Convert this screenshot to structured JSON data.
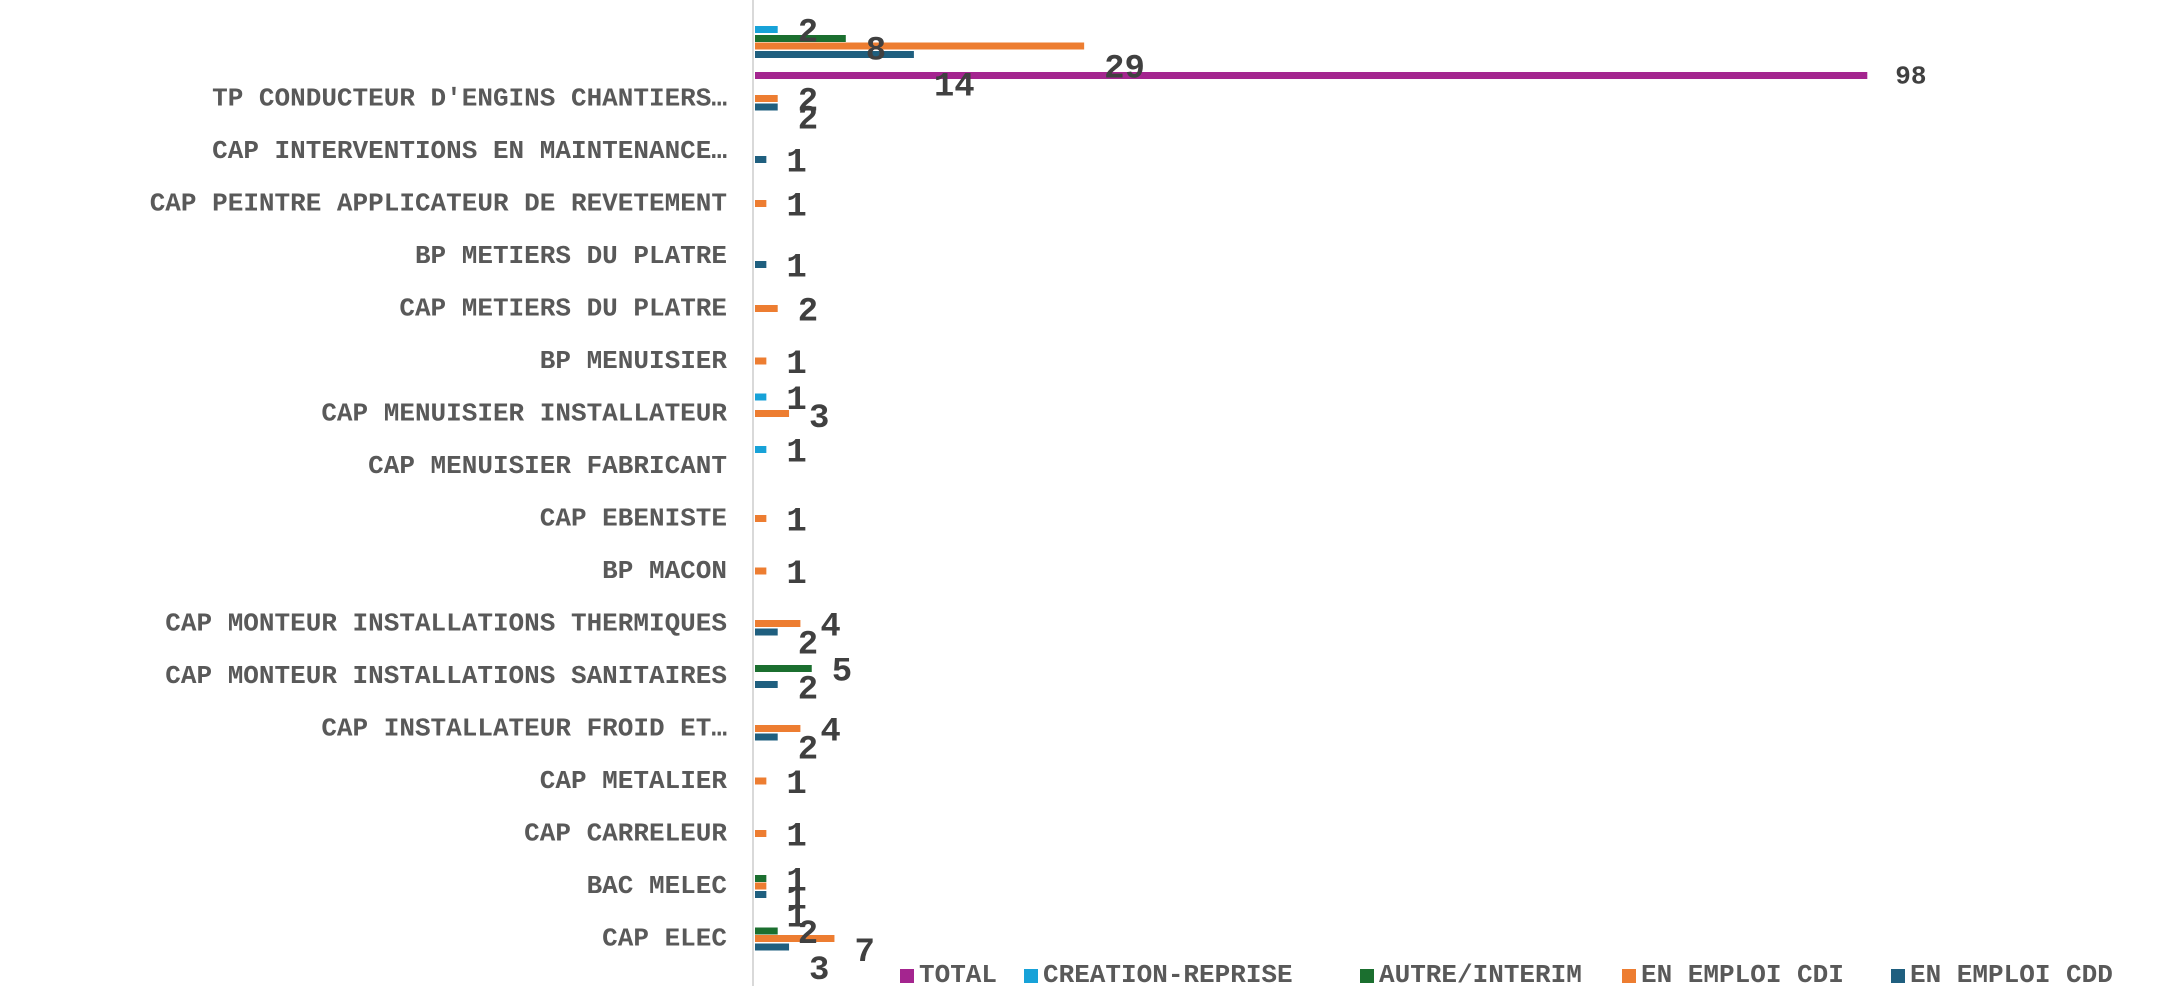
{
  "chart_data": {
    "type": "bar",
    "orientation": "horizontal",
    "grid": false,
    "legend_position": "bottom",
    "categories": [
      "",
      "TP CONDUCTEUR D'ENGINS CHANTIERS…",
      "CAP  INTERVENTIONS EN MAINTENANCE…",
      "CAP PEINTRE APPLICATEUR DE REVETEMENT",
      "BP METIERS DU PLATRE",
      "CAP METIERS DU PLATRE",
      "BP MENUISIER",
      "CAP MENUISIER INSTALLATEUR",
      "CAP MENUISIER FABRICANT",
      "CAP EBENISTE",
      "BP MACON",
      "CAP MONTEUR INSTALLATIONS THERMIQUES",
      "CAP MONTEUR INSTALLATIONS SANITAIRES",
      "CAP INSTALLATEUR FROID ET…",
      "CAP METALIER",
      "CAP CARRELEUR",
      "BAC MELEC",
      "CAP ELEC"
    ],
    "series": [
      {
        "name": "TOTAL",
        "color": "#a4258f",
        "values": [
          98,
          null,
          null,
          null,
          null,
          null,
          null,
          null,
          null,
          null,
          null,
          null,
          null,
          null,
          null,
          null,
          null,
          null
        ]
      },
      {
        "name": "CREATION-REPRISE",
        "color": "#17a2d8",
        "values": [
          2,
          null,
          null,
          null,
          null,
          null,
          null,
          1,
          1,
          null,
          null,
          null,
          null,
          null,
          null,
          null,
          null,
          null
        ]
      },
      {
        "name": "AUTRE/INTERIM",
        "color": "#1b6f2f",
        "values": [
          8,
          null,
          null,
          null,
          null,
          null,
          null,
          null,
          null,
          null,
          null,
          null,
          5,
          null,
          null,
          null,
          1,
          2
        ]
      },
      {
        "name": "EN EMPLOI CDI",
        "color": "#ed7d31",
        "values": [
          29,
          2,
          null,
          1,
          null,
          2,
          1,
          3,
          null,
          1,
          1,
          4,
          null,
          4,
          1,
          1,
          1,
          7
        ]
      },
      {
        "name": "EN EMPLOI CDD",
        "color": "#1f5f7f",
        "values": [
          14,
          2,
          1,
          null,
          1,
          null,
          null,
          null,
          null,
          null,
          null,
          2,
          2,
          2,
          null,
          null,
          1,
          3
        ]
      }
    ]
  }
}
